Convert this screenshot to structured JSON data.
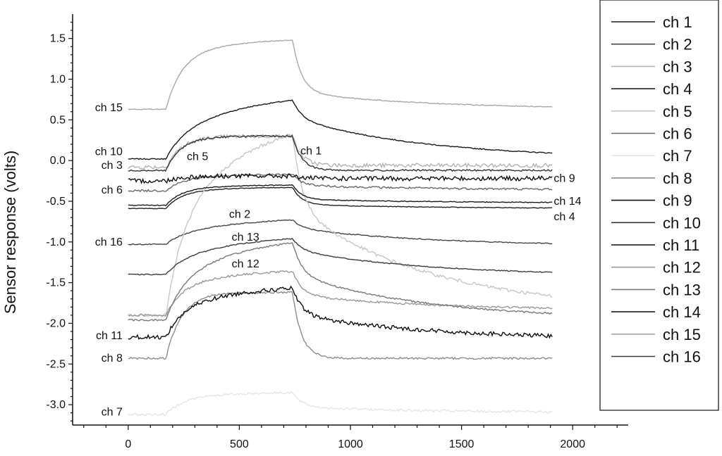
{
  "chart_data": {
    "type": "line",
    "title": "",
    "xlabel": "",
    "ylabel": "Sensor response (volts)",
    "xlim": [
      -250,
      2250
    ],
    "ylim": [
      -3.25,
      1.8
    ],
    "x_ticks": [
      "0",
      "500",
      "1000",
      "1500",
      "2000"
    ],
    "y_ticks": [
      "1.5",
      "1.0",
      "0.5",
      "0.0",
      "-0.5",
      "-1.0",
      "-1.5",
      "-2.0",
      "-2.5",
      "-3.0"
    ],
    "legend_position": "right",
    "series": [
      {
        "name": "ch 1",
        "color": "#1a1a1a",
        "label_text": "ch 1",
        "baseline": 0.02,
        "peak": 0.74,
        "end": 0.02,
        "slow": 0.7,
        "noise": 0.006,
        "label_at": [
          775,
          0.12
        ],
        "label_anchor": "start"
      },
      {
        "name": "ch 2",
        "color": "#444444",
        "label_text": "ch 2",
        "baseline": -1.03,
        "peak": -0.73,
        "end": -1.05,
        "slow": 0.7,
        "noise": 0.006,
        "label_at": [
          550,
          -0.66
        ],
        "label_anchor": "end"
      },
      {
        "name": "ch 3",
        "color": "#b4b4b4",
        "label_text": "ch 3",
        "baseline": -0.08,
        "peak": 0.3,
        "end": -0.06,
        "slow": 0.0,
        "noise": 0.025,
        "label_at": [
          -25,
          -0.06
        ],
        "label_anchor": "end"
      },
      {
        "name": "ch 4",
        "color": "#222222",
        "label_text": "ch 4",
        "baseline": -0.59,
        "peak": -0.33,
        "end": -0.59,
        "slow": 0.2,
        "noise": 0.004,
        "label_at": [
          1915,
          -0.69
        ],
        "label_anchor": "start"
      },
      {
        "name": "ch 5",
        "color": "#c8c8c8",
        "label_text": "ch 5",
        "baseline": -1.9,
        "peak": 0.32,
        "end": -1.85,
        "slow": 0.6,
        "noise": 0.02,
        "label_at": [
          360,
          0.05
        ],
        "label_anchor": "end"
      },
      {
        "name": "ch 6",
        "color": "#6a6a6a",
        "label_text": "ch 6",
        "baseline": -0.37,
        "peak": -0.17,
        "end": -0.36,
        "slow": 0.3,
        "noise": 0.012,
        "label_at": [
          -25,
          -0.36
        ],
        "label_anchor": "end"
      },
      {
        "name": "ch 7",
        "color": "#e6e6e6",
        "label_text": "ch 7",
        "baseline": -3.12,
        "peak": -2.85,
        "end": -3.1,
        "slow": 0.3,
        "noise": 0.015,
        "label_at": [
          -25,
          -3.09
        ],
        "label_anchor": "end"
      },
      {
        "name": "ch 8",
        "color": "#8c8c8c",
        "label_text": "ch 8",
        "baseline": -2.43,
        "peak": -1.62,
        "end": -2.43,
        "slow": 0.0,
        "noise": 0.012,
        "label_at": [
          -25,
          -2.43
        ],
        "label_anchor": "end"
      },
      {
        "name": "ch 9",
        "color": "#111111",
        "label_text": "ch 9",
        "baseline": -0.25,
        "peak": -0.19,
        "end": -0.22,
        "slow": 0.0,
        "noise": 0.028,
        "label_at": [
          1915,
          -0.22
        ],
        "label_anchor": "start"
      },
      {
        "name": "ch 10",
        "color": "#333333",
        "label_text": "ch 10",
        "baseline": -0.12,
        "peak": 0.3,
        "end": -0.12,
        "slow": 0.0,
        "noise": 0.01,
        "label_at": [
          -25,
          0.11
        ],
        "label_anchor": "end"
      },
      {
        "name": "ch 11",
        "color": "#0d0d0d",
        "label_text": "ch 11",
        "baseline": -2.17,
        "peak": -1.57,
        "end": -2.2,
        "slow": 0.5,
        "noise": 0.025,
        "label_at": [
          -25,
          -2.15
        ],
        "label_anchor": "end"
      },
      {
        "name": "ch 12",
        "color": "#999999",
        "label_text": "ch 12",
        "baseline": -1.9,
        "peak": -1.36,
        "end": -1.84,
        "slow": 0.4,
        "noise": 0.012,
        "label_at": [
          590,
          -1.27
        ],
        "label_anchor": "end"
      },
      {
        "name": "ch 13",
        "color": "#7a7a7a",
        "label_text": "ch 13",
        "baseline": -1.96,
        "peak": -1.01,
        "end": -1.96,
        "slow": 0.6,
        "noise": 0.01,
        "label_at": [
          590,
          -0.94
        ],
        "label_anchor": "end"
      },
      {
        "name": "ch 14",
        "color": "#1c1c1c",
        "label_text": "ch 14",
        "baseline": -0.55,
        "peak": -0.3,
        "end": -0.52,
        "slow": 0.2,
        "noise": 0.005,
        "label_at": [
          1915,
          -0.5
        ],
        "label_anchor": "start"
      },
      {
        "name": "ch 15",
        "color": "#a8a8a8",
        "label_text": "ch 15",
        "baseline": 0.63,
        "peak": 1.48,
        "end": 0.63,
        "slow": 0.25,
        "noise": 0.005,
        "label_at": [
          -25,
          0.65
        ],
        "label_anchor": "end"
      },
      {
        "name": "ch 16",
        "color": "#3c3c3c",
        "label_text": "ch 16",
        "baseline": -1.4,
        "peak": -0.96,
        "end": -1.42,
        "slow": 0.7,
        "noise": 0.006,
        "label_at": [
          -25,
          -1.0
        ],
        "label_anchor": "end"
      }
    ]
  }
}
